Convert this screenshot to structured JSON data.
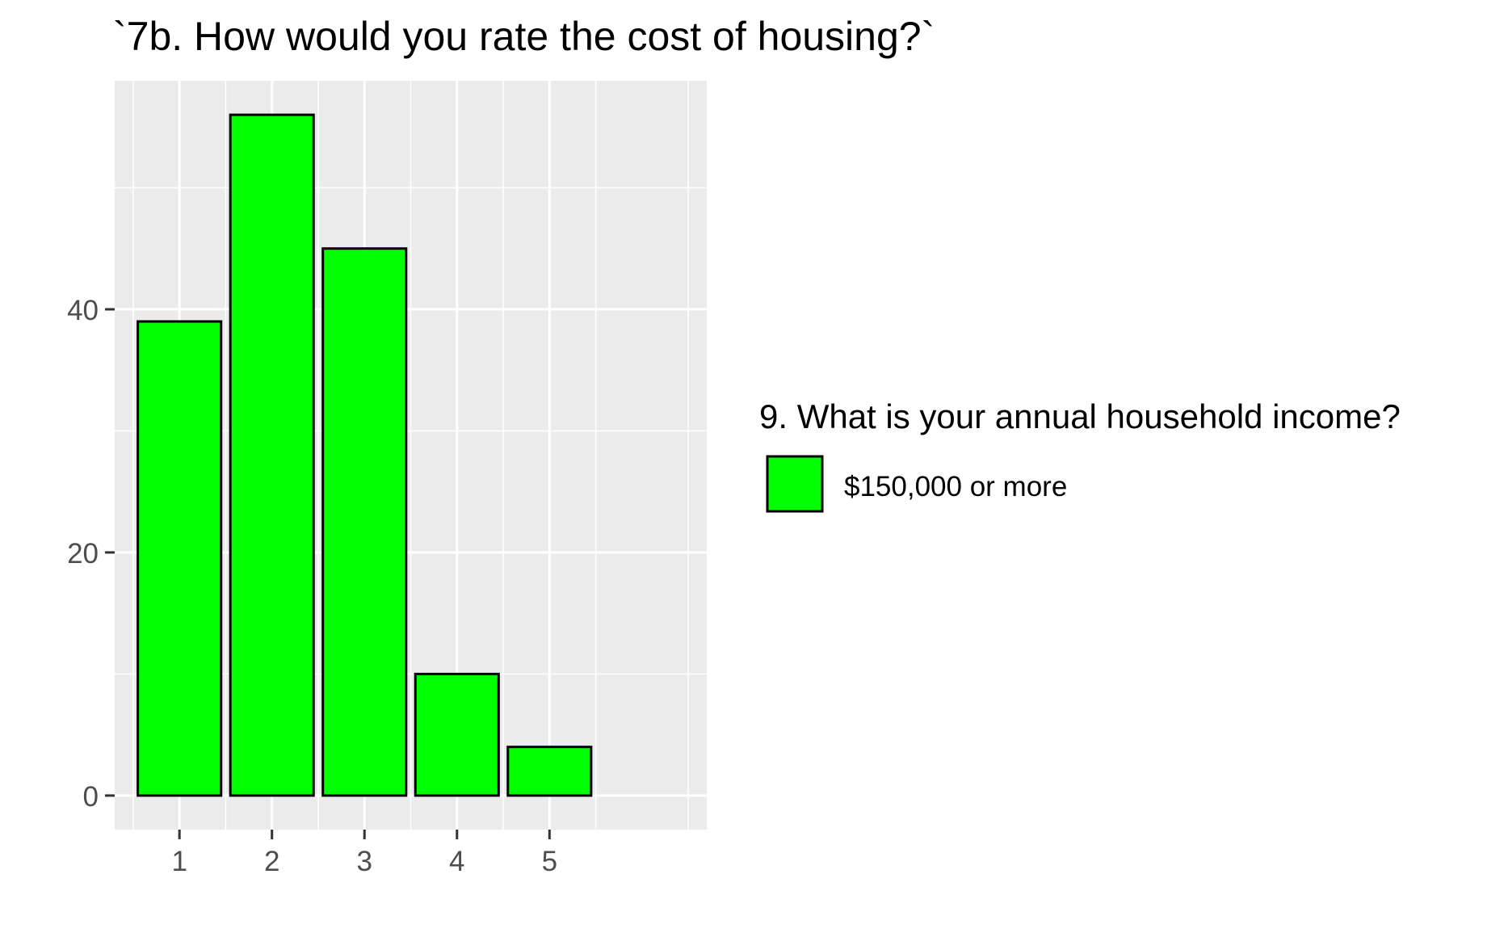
{
  "chart_data": {
    "type": "bar",
    "title": "`7b. How would you rate the cost of housing?`",
    "xlabel": "",
    "ylabel": "",
    "categories": [
      "1",
      "2",
      "3",
      "4",
      "5"
    ],
    "series": [
      {
        "name": "$150,000 or more",
        "values": [
          39,
          56,
          45,
          10,
          4
        ],
        "color": "#00FF00",
        "outline": "#000000"
      }
    ],
    "yticks": [
      0,
      20,
      40
    ],
    "ylim": [
      -2.8,
      58.8
    ],
    "xlim": [
      0.3,
      6.7
    ],
    "grid": true,
    "legend": {
      "title": "9. What is your annual household income?",
      "position": "right"
    },
    "panel_background": "#EBEBEB",
    "grid_color": "#FFFFFF"
  }
}
